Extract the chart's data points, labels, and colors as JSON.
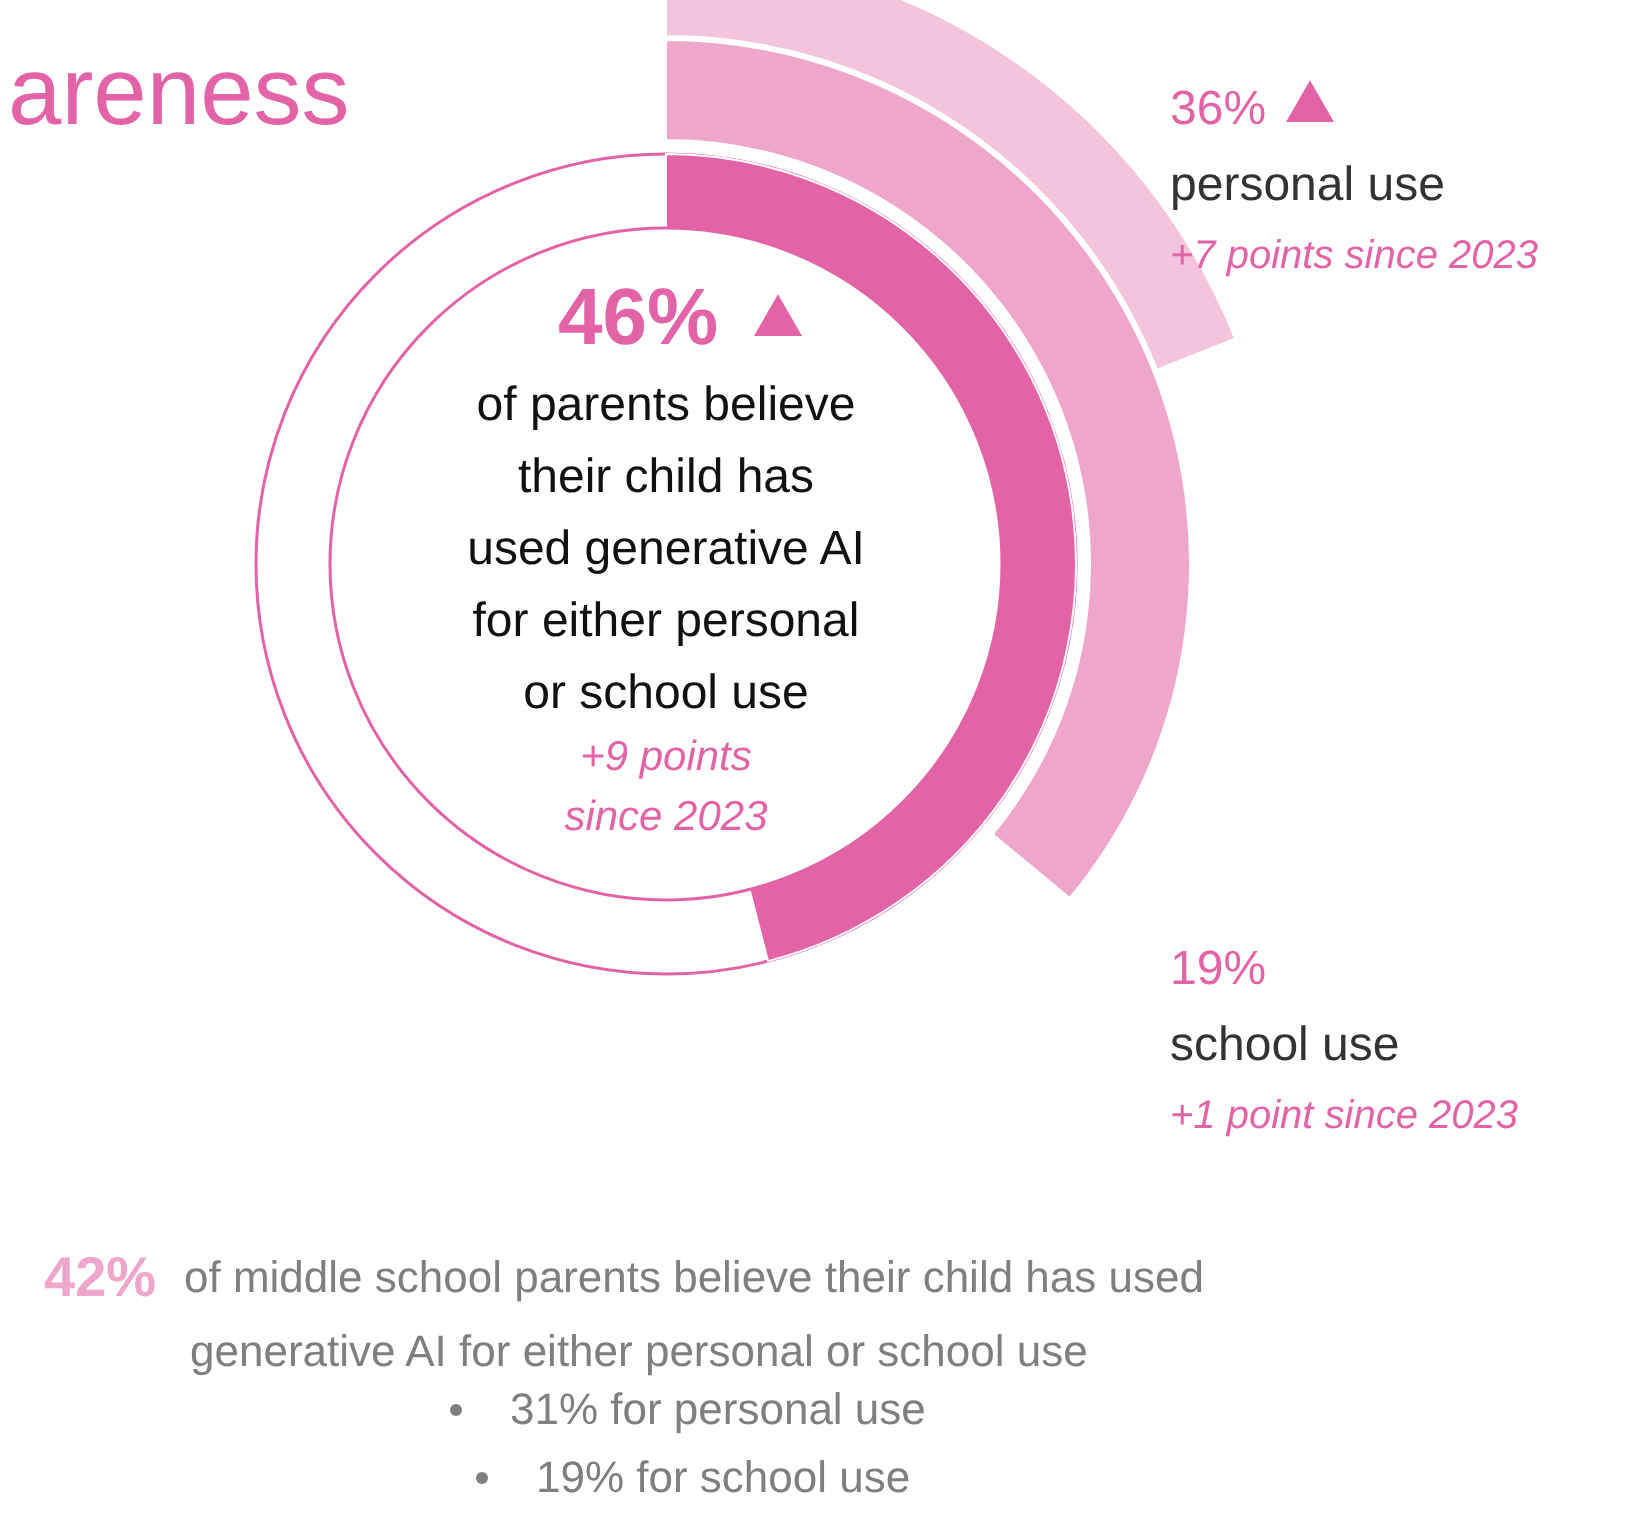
{
  "chart_data": {
    "type": "other",
    "title": "areness",
    "categories": [
      "of parents believe their child has used generative AI for either personal or school use",
      "personal use",
      "school use"
    ],
    "values": [
      46,
      36,
      19
    ],
    "value_labels": [
      "46%",
      "36%",
      "19%"
    ],
    "colors": [
      "#e264a6",
      "#eea7cb",
      "#f4c4dc"
    ],
    "annotations": [
      "+9 points since 2023",
      "+7 points since 2023",
      "+1 point since 2023",
      "42%",
      "of middle school parents believe their child has used generative AI for either personal or school use",
      "31% for personal use",
      "19% for school use"
    ]
  }
}
